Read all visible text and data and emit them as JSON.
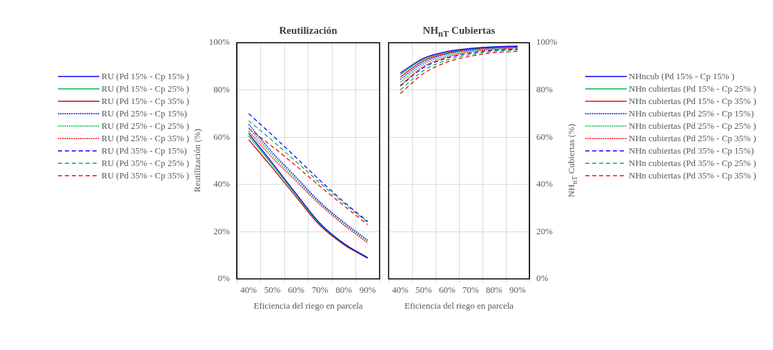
{
  "chart_data": [
    {
      "type": "line",
      "title": "Reutilización",
      "xlabel": "Eficiencia del riego en parcela",
      "ylabel": "Reutilización (%)",
      "categories": [
        "40%",
        "50%",
        "60%",
        "70%",
        "80%",
        "90%"
      ],
      "ylim": [
        0,
        100
      ],
      "yticks": [
        {
          "value": 0,
          "label": "0%"
        },
        {
          "value": 20,
          "label": "20%"
        },
        {
          "value": 40,
          "label": "40%"
        },
        {
          "value": 60,
          "label": "60%"
        },
        {
          "value": 80,
          "label": "80%"
        },
        {
          "value": 100,
          "label": "100%"
        }
      ],
      "grid": true,
      "legend": "left",
      "marker": "none",
      "series": [
        {
          "name": "RU (Pd 15% - Cp 15% )",
          "color": "#0000ff",
          "line_style": "solid",
          "values": [
            61.6,
            49,
            36,
            23.5,
            15,
            9
          ]
        },
        {
          "name": "RU (Pd 15% - Cp 25% )",
          "color": "#00b050",
          "line_style": "solid",
          "values": [
            60.6,
            48.2,
            35.4,
            23.1,
            14.8,
            8.9
          ]
        },
        {
          "name": "RU (Pd 15% - Cp 35% )",
          "color": "#c00000",
          "line_style": "solid",
          "values": [
            59,
            47,
            34.6,
            22.6,
            14.5,
            8.7
          ]
        },
        {
          "name": "RU (Pd 25% - Cp 15%)",
          "color": "#0000ff",
          "line_style": "dotted",
          "values": [
            65.5,
            53.5,
            43,
            32.5,
            24,
            16.4
          ]
        },
        {
          "name": "RU (Pd 25% - Cp 25% )",
          "color": "#00b050",
          "line_style": "dotted",
          "values": [
            64,
            52.5,
            42.2,
            32,
            23.4,
            15.8
          ]
        },
        {
          "name": "RU (Pd 25% - Cp 35% )",
          "color": "#ff0000",
          "line_style": "dotted",
          "values": [
            62.5,
            51.3,
            41.3,
            31.4,
            22.8,
            15.2
          ]
        },
        {
          "name": "RU (Pd 35% - Cp 15%)",
          "color": "#0000ff",
          "line_style": "dashed",
          "values": [
            70,
            60.8,
            51.3,
            41.7,
            32.6,
            24.3
          ]
        },
        {
          "name": "RU (Pd 35% - Cp 25% )",
          "color": "#00b050",
          "line_style": "dashed",
          "values": [
            67,
            58.5,
            49.6,
            40.6,
            32,
            24
          ]
        },
        {
          "name": "RU (Pd 35% - Cp 35% )",
          "color": "#ff0000",
          "line_style": "dashed",
          "values": [
            63.7,
            56,
            47.8,
            39.2,
            31,
            23
          ]
        }
      ]
    },
    {
      "type": "line",
      "title": "NH$_{nT}$ Cubiertas",
      "xlabel": "Eficiencia del riego en parcela",
      "ylabel": "NH$_{nT}$ Cubiertas (%)",
      "categories": [
        "40%",
        "50%",
        "60%",
        "70%",
        "80%",
        "90%"
      ],
      "ylim": [
        0,
        100
      ],
      "yticks": [
        {
          "value": 0,
          "label": "0%"
        },
        {
          "value": 20,
          "label": "20%"
        },
        {
          "value": 40,
          "label": "40%"
        },
        {
          "value": 60,
          "label": "60%"
        },
        {
          "value": 80,
          "label": "80%"
        },
        {
          "value": 100,
          "label": "100%"
        }
      ],
      "grid": true,
      "legend": "right",
      "marker": "none",
      "series": [
        {
          "name": "NHncub (Pd 15% - Cp 15% )",
          "color": "#0000ff",
          "line_style": "solid",
          "values": [
            87.2,
            93.5,
            96.3,
            97.6,
            98.3,
            98.6
          ]
        },
        {
          "name": "NHn cubiertas (Pd 15% - Cp 25% )",
          "color": "#00b050",
          "line_style": "solid",
          "values": [
            86.5,
            93.1,
            96,
            97.4,
            98.2,
            98.5
          ]
        },
        {
          "name": "NHn cubiertas (Pd 15% - Cp 35% )",
          "color": "#ff0000",
          "line_style": "solid",
          "values": [
            85.5,
            92.5,
            95.6,
            97.2,
            98,
            98.4
          ]
        },
        {
          "name": "NHn cubiertas (Pd 25% - Cp 15%)",
          "color": "#0000ff",
          "line_style": "dotted",
          "values": [
            84.5,
            91.8,
            95.2,
            96.9,
            97.8,
            98.2
          ]
        },
        {
          "name": "NHn cubiertas (Pd 25% - Cp 25% )",
          "color": "#00b050",
          "line_style": "dotted",
          "values": [
            83.3,
            91,
            94.6,
            96.5,
            97.5,
            98
          ]
        },
        {
          "name": "NHn cubiertas (Pd 25% - Cp 35% )",
          "color": "#ff0000",
          "line_style": "dotted",
          "values": [
            82,
            90,
            94,
            96.1,
            97.2,
            97.7
          ]
        },
        {
          "name": "NHn cubiertas (Pd 35% - Cp 15%)",
          "color": "#0000ff",
          "line_style": "dashed",
          "values": [
            81.7,
            89.5,
            93.5,
            95.6,
            96.8,
            97.3
          ]
        },
        {
          "name": "NHn cubiertas (Pd 35% - Cp 25% )",
          "color": "#00b050",
          "line_style": "dashed",
          "values": [
            80,
            88.3,
            92.7,
            95,
            96.4,
            97
          ]
        },
        {
          "name": "NHn cubiertas (Pd 35% - Cp 35% )",
          "color": "#ff0000",
          "line_style": "dashed",
          "values": [
            78.5,
            87,
            91.8,
            94.3,
            95.8,
            96.3
          ]
        }
      ]
    }
  ]
}
